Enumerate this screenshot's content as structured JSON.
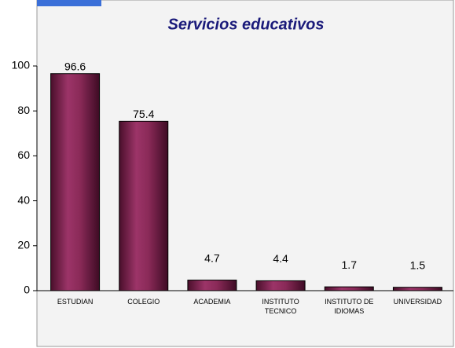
{
  "chart_data": {
    "type": "bar",
    "title": "Servicios educativos",
    "categories": [
      "ESTUDIAN",
      "COLEGIO",
      "ACADEMIA",
      "INSTITUTO TECNICO",
      "INSTITUTO DE IDIOMAS",
      "UNIVERSIDAD"
    ],
    "values": [
      96.6,
      75.4,
      4.7,
      4.4,
      1.7,
      1.5
    ],
    "color": "#7a1f48",
    "ylim": [
      0,
      100
    ],
    "yticks": [
      0,
      20,
      40,
      60,
      80,
      100
    ],
    "grid": false
  }
}
